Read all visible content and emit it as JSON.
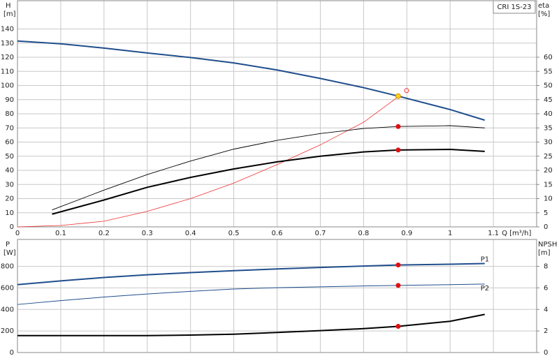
{
  "chart_data": [
    {
      "type": "line",
      "legend_label": "CRI 1S-23",
      "y_label": "H",
      "y_unit": "[m]",
      "y2_label": "eta",
      "y2_unit": "[%]",
      "x_label": "Q [m³/h]",
      "annotation": "Q",
      "xlim": [
        0,
        1.2
      ],
      "xticks": [
        0,
        0.1,
        0.2,
        0.3,
        0.4,
        0.5,
        0.6,
        0.7,
        0.8,
        0.9,
        1.0,
        1.1
      ],
      "ylim": [
        0,
        160
      ],
      "yticks": [
        0,
        10,
        20,
        30,
        40,
        50,
        60,
        70,
        80,
        90,
        100,
        110,
        120,
        130,
        140
      ],
      "y2lim": [
        0,
        80
      ],
      "y2ticks": [
        0,
        5,
        10,
        15,
        20,
        25,
        30,
        35,
        40,
        45,
        50,
        55,
        60
      ],
      "grid": true,
      "series": [
        {
          "color": "#1f4e8c",
          "line_width": 2,
          "x": [
            0,
            0.1,
            0.2,
            0.3,
            0.4,
            0.5,
            0.6,
            0.7,
            0.8,
            0.88,
            1.0,
            1.08
          ],
          "values": [
            131.5,
            129.5,
            126.5,
            123,
            119.8,
            116,
            111,
            105,
            98.5,
            92.5,
            83,
            75.5
          ]
        },
        {
          "axis": "y2",
          "color": "#f03030",
          "line_width": 0.8,
          "x": [
            0,
            0.1,
            0.2,
            0.3,
            0.4,
            0.5,
            0.6,
            0.7,
            0.8,
            0.88
          ],
          "values": [
            0,
            0.5,
            2,
            5.5,
            10,
            15.5,
            22,
            29,
            37,
            46
          ]
        },
        {
          "axis": "y2",
          "color": "#000000",
          "line_width": 0.9,
          "x": [
            0.08,
            0.2,
            0.3,
            0.4,
            0.5,
            0.6,
            0.7,
            0.8,
            0.88,
            1.0,
            1.08
          ],
          "values": [
            6,
            13,
            18.5,
            23.3,
            27.5,
            30.6,
            33,
            34.8,
            35.5,
            35.8,
            35
          ]
        },
        {
          "axis": "y2",
          "color": "#000000",
          "line_width": 2,
          "x": [
            0.08,
            0.2,
            0.3,
            0.4,
            0.5,
            0.6,
            0.7,
            0.8,
            0.88,
            1.0,
            1.08
          ],
          "values": [
            4.5,
            9.5,
            14,
            17.5,
            20.5,
            23,
            25,
            26.5,
            27.2,
            27.4,
            26.7
          ]
        }
      ],
      "points": [
        {
          "color": "#ffd21f",
          "x": [
            0.88
          ],
          "values": [
            92.5
          ]
        },
        {
          "axis": "y2",
          "color": "#e01010",
          "x": [
            0.88,
            0.88
          ],
          "values": [
            35.5,
            27.2
          ]
        }
      ]
    },
    {
      "type": "line",
      "y_label": "P",
      "y_unit": "[W]",
      "y2_label": "NPSH",
      "y2_unit": "[m]",
      "xlim": [
        0,
        1.2
      ],
      "ylim": [
        0,
        1050
      ],
      "yticks": [
        0,
        200,
        400,
        600,
        800
      ],
      "y2lim": [
        0,
        10.5
      ],
      "y2ticks": [
        0,
        2,
        4,
        6,
        8
      ],
      "grid": true,
      "series": [
        {
          "name": "P1",
          "color": "#1f4e8c",
          "line_width": 2,
          "x": [
            0,
            0.1,
            0.2,
            0.3,
            0.4,
            0.5,
            0.6,
            0.7,
            0.8,
            0.88,
            1.0,
            1.08
          ],
          "values": [
            630,
            665,
            697,
            722,
            742,
            760,
            776,
            790,
            803,
            813,
            820,
            826
          ]
        },
        {
          "name": "P2",
          "color": "#1f4e8c",
          "line_width": 1,
          "x": [
            0,
            0.1,
            0.2,
            0.3,
            0.4,
            0.5,
            0.6,
            0.7,
            0.8,
            0.88,
            1.0,
            1.08
          ],
          "values": [
            446,
            482,
            515,
            544,
            568,
            590,
            602,
            610,
            618,
            623,
            630,
            636
          ]
        },
        {
          "axis": "y2",
          "color": "#000000",
          "line_width": 2,
          "x": [
            0,
            0.1,
            0.2,
            0.3,
            0.4,
            0.5,
            0.6,
            0.7,
            0.8,
            0.88,
            1.0,
            1.08
          ],
          "values": [
            1.57,
            1.57,
            1.57,
            1.57,
            1.62,
            1.7,
            1.86,
            2.03,
            2.22,
            2.43,
            2.9,
            3.54
          ]
        }
      ],
      "points": [
        {
          "color": "#e01010",
          "x": [
            0.88,
            0.88
          ],
          "values": [
            813,
            623
          ]
        },
        {
          "axis": "y2",
          "color": "#e01010",
          "x": [
            0.88
          ],
          "values": [
            2.43
          ]
        }
      ]
    }
  ]
}
